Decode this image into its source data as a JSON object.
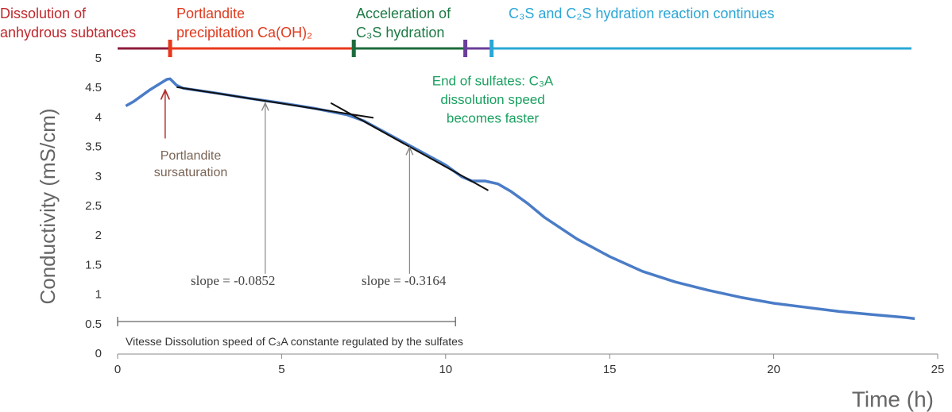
{
  "chart_data": {
    "type": "line",
    "x_label": "Time (h)",
    "y_label": "Conductivity (mS/cm)",
    "xlim": [
      0,
      25
    ],
    "ylim": [
      0,
      5
    ],
    "xticks": [
      0,
      5,
      10,
      15,
      20,
      25
    ],
    "yticks": [
      0,
      0.5,
      1,
      1.5,
      2,
      2.5,
      3,
      3.5,
      4,
      4.5,
      5
    ],
    "series": [
      {
        "name": "Conductivity",
        "color": "#4a7cc7",
        "x": [
          0.25,
          0.5,
          1.0,
          1.5,
          1.6,
          1.8,
          2,
          3,
          4,
          5,
          6,
          7,
          7.5,
          8,
          9,
          10,
          10.5,
          10.8,
          11.2,
          11.6,
          12,
          12.5,
          13,
          14,
          15,
          16,
          17,
          18,
          19,
          20,
          21,
          22,
          23,
          24,
          24.3
        ],
        "values": [
          4.2,
          4.28,
          4.48,
          4.65,
          4.66,
          4.55,
          4.5,
          4.42,
          4.33,
          4.25,
          4.16,
          4.05,
          3.95,
          3.8,
          3.5,
          3.2,
          3.0,
          2.93,
          2.93,
          2.88,
          2.75,
          2.55,
          2.32,
          1.95,
          1.65,
          1.4,
          1.22,
          1.08,
          0.96,
          0.86,
          0.79,
          0.72,
          0.67,
          0.62,
          0.6
        ]
      }
    ],
    "phases": [
      {
        "label": [
          "Dissolution of",
          "anhydrous subtances"
        ],
        "start": 0,
        "end": 1.6,
        "color": "#8e1b3b",
        "text_color": "#c0282d"
      },
      {
        "label": [
          "Portlandite",
          "precipitation Ca(OH)₂"
        ],
        "start": 1.6,
        "end": 7.2,
        "color": "#e8381c",
        "text_color": "#e03a1e"
      },
      {
        "label": [
          "Acceleration of",
          "C₃S hydration"
        ],
        "start": 7.2,
        "end": 10.6,
        "color": "#1d6b3c",
        "text_color": "#1e7a45"
      },
      {
        "label": [],
        "start": 10.6,
        "end": 11.4,
        "color": "#6a3d9a",
        "text_color": "#1d8a4a"
      },
      {
        "label": [
          "C₃S and C₂S hydration reaction continues"
        ],
        "start": 11.4,
        "end": 24.2,
        "color": "#2aa7d6",
        "text_color": "#2aa7d6"
      }
    ],
    "trend_lines": [
      {
        "label": "slope = -0.0852",
        "x": [
          1.8,
          7.8
        ],
        "y": [
          4.52,
          4.0
        ],
        "arrow": {
          "x": 4.5,
          "from": 1.36,
          "to": 4.25
        }
      },
      {
        "label": "slope = -0.3164",
        "x": [
          6.5,
          11.3
        ],
        "y": [
          4.25,
          2.77
        ],
        "arrow": {
          "x": 8.9,
          "from": 1.36,
          "to": 3.5
        }
      }
    ],
    "annotations": [
      {
        "text": [
          "Portlandite",
          "sursaturation"
        ],
        "color": "#7a6455",
        "arrow_color": "#b03030",
        "arrow": {
          "x": 1.45,
          "from": 3.65,
          "to": 4.47
        }
      },
      {
        "text": [
          "End of sulfates: C₃A",
          "dissolution speed",
          "becomes  faster"
        ],
        "color": "#1aa060"
      }
    ],
    "bracket": {
      "label": "Vitesse Dissolution speed of C₃A constante regulated by the sulfates",
      "start": 0,
      "end": 10.3,
      "y": 0.55
    }
  }
}
